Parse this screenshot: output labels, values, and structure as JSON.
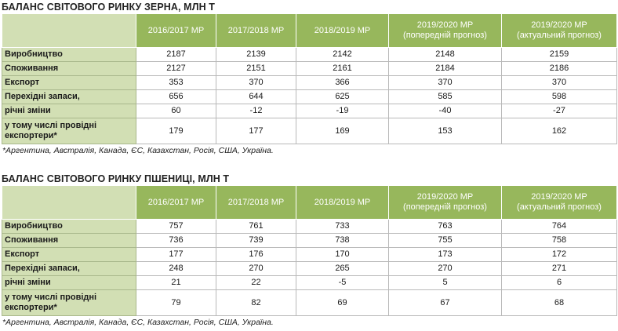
{
  "grain": {
    "title": "БАЛАНС СВІТОВОГО РИНКУ ЗЕРНА, МЛН Т",
    "headers": [
      "",
      "2016/2017 МР",
      "2017/2018 МР",
      "2018/2019 МР",
      "2019/2020 МР\n(попередній прогноз)",
      "2019/2020 МР\n(актуальний прогноз)"
    ],
    "rows": [
      [
        "Виробництво",
        "2187",
        "2139",
        "2142",
        "2148",
        "2159"
      ],
      [
        "Споживання",
        "2127",
        "2151",
        "2161",
        "2184",
        "2186"
      ],
      [
        "Експорт",
        "353",
        "370",
        "366",
        "370",
        "370"
      ],
      [
        "Перехідні запаси,",
        "656",
        "644",
        "625",
        "585",
        "598"
      ],
      [
        "річні зміни",
        "60",
        "-12",
        "-19",
        "-40",
        "-27"
      ],
      [
        "у тому числі провідні\nекспортери*",
        "179",
        "177",
        "169",
        "153",
        "162"
      ]
    ],
    "footnote": "*Аргентина, Австралія, Канада, ЄС, Казахстан, Росія, США, Україна."
  },
  "wheat": {
    "title": "БАЛАНС СВІТОВОГО РИНКУ ПШЕНИЦІ, МЛН Т",
    "headers": [
      "",
      "2016/2017 МР",
      "2017/2018 МР",
      "2018/2019 МР",
      "2019/2020 МР\n(попередній прогноз)",
      "2019/2020 МР\n(актуальний прогноз)"
    ],
    "rows": [
      [
        "Виробництво",
        "757",
        "761",
        "733",
        "763",
        "764"
      ],
      [
        "Споживання",
        "736",
        "739",
        "738",
        "755",
        "758"
      ],
      [
        "Експорт",
        "177",
        "176",
        "170",
        "173",
        "172"
      ],
      [
        "Перехідні запаси,",
        "248",
        "270",
        "265",
        "270",
        "271"
      ],
      [
        "річні зміни",
        "21",
        "22",
        "-5",
        "5",
        "6"
      ],
      [
        "у тому числі провідні\nекспортери*",
        "79",
        "82",
        "69",
        "67",
        "68"
      ]
    ],
    "footnote": "*Аргентина, Австралія, Канада, ЄС, Казахстан, Росія, США, Україна."
  }
}
